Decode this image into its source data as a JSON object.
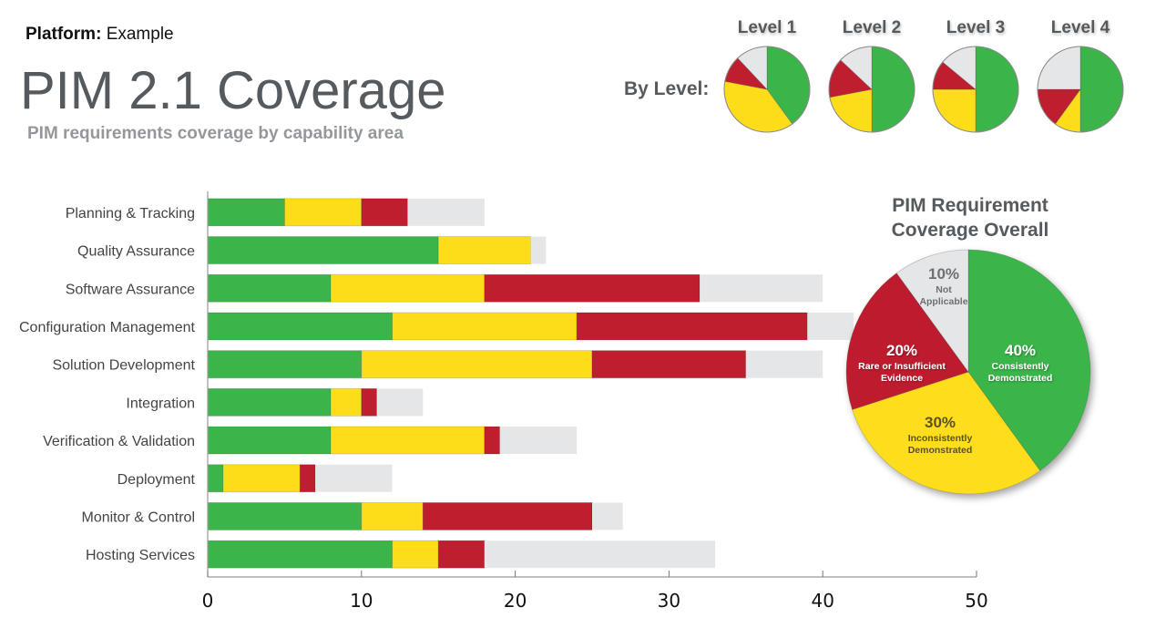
{
  "header": {
    "platform_label": "Platform:",
    "platform_value": "Example",
    "title": "PIM 2.1 Coverage",
    "subtitle": "PIM requirements coverage by capability area"
  },
  "colors": {
    "consistent": "#3bb54a",
    "inconsistent": "#fddd1a",
    "insufficient": "#be1e2d",
    "not_applicable": "#e5e6e7"
  },
  "chart_data": [
    {
      "type": "bar",
      "stacked": true,
      "orientation": "horizontal",
      "title": "",
      "xlabel": "",
      "ylabel": "",
      "xlim": [
        0,
        50
      ],
      "xticks": [
        "0",
        "10",
        "20",
        "30",
        "40",
        "50"
      ],
      "categories": [
        "Planning & Tracking",
        "Quality Assurance",
        "Software Assurance",
        "Configuration Management",
        "Solution Development",
        "Integration",
        "Verification & Validation",
        "Deployment",
        "Monitor & Control",
        "Hosting Services"
      ],
      "series": [
        {
          "name": "Consistently Demonstrated",
          "color": "#3bb54a",
          "values": [
            5,
            15,
            8,
            12,
            10,
            8,
            8,
            1,
            10,
            12
          ]
        },
        {
          "name": "Inconsistently Demonstrated",
          "color": "#fddd1a",
          "values": [
            5,
            6,
            10,
            12,
            15,
            2,
            10,
            5,
            4,
            3
          ]
        },
        {
          "name": "Rare or Insufficient Evidence",
          "color": "#be1e2d",
          "values": [
            3,
            0,
            14,
            15,
            10,
            1,
            1,
            1,
            11,
            3
          ]
        },
        {
          "name": "Not Applicable",
          "color": "#e5e6e7",
          "values": [
            5,
            1,
            8,
            3,
            5,
            3,
            5,
            5,
            2,
            15
          ]
        }
      ]
    },
    {
      "type": "pie",
      "title": "By Level:",
      "pies": [
        {
          "label": "Level 1",
          "values": [
            40,
            38,
            10,
            12
          ]
        },
        {
          "label": "Level 2",
          "values": [
            50,
            22,
            15,
            13
          ]
        },
        {
          "label": "Level 3",
          "values": [
            50,
            25,
            11,
            14
          ]
        },
        {
          "label": "Level 4",
          "values": [
            50,
            10,
            15,
            25
          ]
        }
      ],
      "slice_order": [
        "Consistently Demonstrated",
        "Inconsistently Demonstrated",
        "Rare or Insufficient Evidence",
        "Not Applicable"
      ]
    },
    {
      "type": "pie",
      "title": "PIM Requirement Coverage Overall",
      "slices": [
        {
          "pct": "40%",
          "label_lines": [
            "Consistently",
            "Demonstrated"
          ],
          "value": 40,
          "color": "#3bb54a",
          "text_color": "#ffffff"
        },
        {
          "pct": "30%",
          "label_lines": [
            "Inconsistently",
            "Demonstrated"
          ],
          "value": 30,
          "color": "#fddd1a",
          "text_color": "#5a5328"
        },
        {
          "pct": "20%",
          "label_lines": [
            "Rare or Insufficient",
            "Evidence"
          ],
          "value": 20,
          "color": "#be1e2d",
          "text_color": "#ffffff"
        },
        {
          "pct": "10%",
          "label_lines": [
            "Not",
            "Applicable"
          ],
          "value": 10,
          "color": "#e5e6e7",
          "text_color": "#6d6f71"
        }
      ]
    }
  ]
}
